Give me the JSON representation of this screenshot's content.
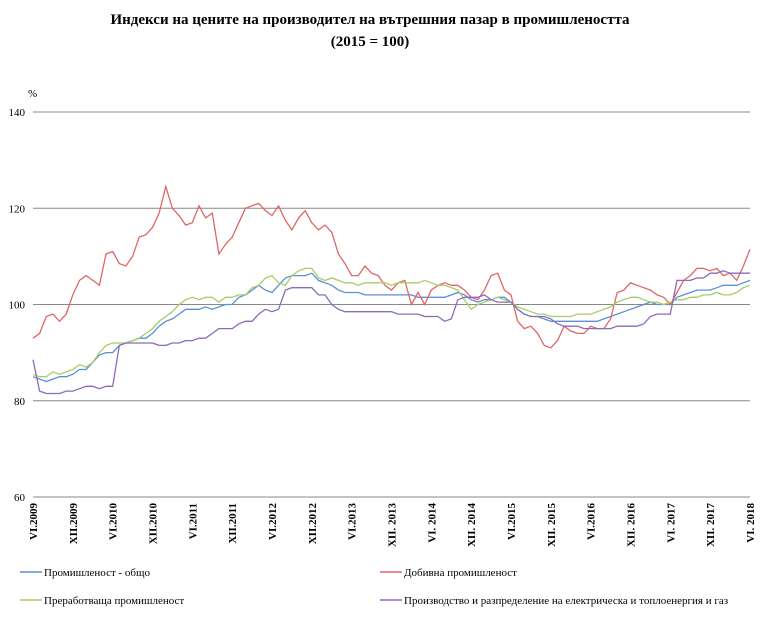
{
  "chart_data": {
    "type": "line",
    "title": "Индекси на цените на производител на вътрешния пазар в промишлеността",
    "subtitle": "(2015 = 100)",
    "y_label": "%",
    "categories": [
      "VI.2009",
      null,
      null,
      null,
      null,
      null,
      "XII.2009",
      null,
      null,
      null,
      null,
      null,
      "VI.2010",
      null,
      null,
      null,
      null,
      null,
      "XII.2010",
      null,
      null,
      null,
      null,
      null,
      "VI.2011",
      null,
      null,
      null,
      null,
      null,
      "XII.2011",
      null,
      null,
      null,
      null,
      null,
      "VI.2012",
      null,
      null,
      null,
      null,
      null,
      "XII.2012",
      null,
      null,
      null,
      null,
      null,
      "VI.2013",
      null,
      null,
      null,
      null,
      null,
      "XII. 2013",
      null,
      null,
      null,
      null,
      null,
      "VI. 2014",
      null,
      null,
      null,
      null,
      null,
      "XII. 2014",
      null,
      null,
      null,
      null,
      null,
      "VI.2015",
      null,
      null,
      null,
      null,
      null,
      "XII. 2015",
      null,
      null,
      null,
      null,
      null,
      "VI.2016",
      null,
      null,
      null,
      null,
      null,
      "XII. 2016",
      null,
      null,
      null,
      null,
      null,
      "VI. 2017",
      null,
      null,
      null,
      null,
      null,
      "XII. 2017",
      null,
      null,
      null,
      null,
      null,
      "VI. 2018"
    ],
    "ylim": [
      60,
      140
    ],
    "yticks": [
      60,
      80,
      100,
      120,
      140
    ],
    "grid": true,
    "series": [
      {
        "name": "Промишленост - общо",
        "color": "#5b8fd6",
        "values": [
          85,
          84.5,
          84,
          84.5,
          85,
          85,
          85.5,
          86.5,
          86.5,
          88,
          89.5,
          90,
          90,
          91.5,
          92,
          92.5,
          93,
          93,
          94,
          95.5,
          96.5,
          97,
          98,
          99,
          99,
          99,
          99.5,
          99,
          99.5,
          100,
          100,
          101.5,
          102,
          103,
          104,
          103,
          102.5,
          104,
          105.5,
          106,
          106,
          106,
          106.5,
          105,
          104.5,
          104,
          103,
          102.5,
          102.5,
          102.5,
          102,
          102,
          102,
          102,
          102,
          102,
          102,
          102,
          101.5,
          101.5,
          101.5,
          101.5,
          101.5,
          102,
          102.5,
          102,
          101,
          100.5,
          101,
          101,
          101.5,
          101.5,
          100.5,
          99,
          98,
          97.5,
          97.5,
          97,
          96.5,
          96.5,
          96.5,
          96.5,
          96.5,
          96.5,
          96.5,
          96.5,
          97,
          97.5,
          98,
          98.5,
          99,
          99.5,
          100,
          100.5,
          100,
          100,
          100,
          101.5,
          102,
          102.5,
          103,
          103,
          103,
          103.5,
          104,
          104,
          104,
          104.5,
          105
        ]
      },
      {
        "name": "Добивна промишленост",
        "color": "#e06666",
        "values": [
          93,
          94,
          97.5,
          98,
          96.5,
          98,
          102,
          105,
          106,
          105,
          104,
          110.5,
          111,
          108.5,
          108,
          110,
          114,
          114.5,
          116,
          119,
          124.5,
          120,
          118.5,
          116.5,
          117,
          120.5,
          118,
          119,
          110.5,
          112.5,
          114,
          117,
          120,
          120.5,
          121,
          119.5,
          118.5,
          120.5,
          117.5,
          115.5,
          118,
          119.5,
          117,
          115.5,
          116.5,
          115,
          110.5,
          108.5,
          106,
          106,
          108,
          106.5,
          106,
          104,
          103,
          104.5,
          105,
          100,
          102.5,
          100,
          103,
          104,
          104.5,
          104,
          104,
          103,
          101.5,
          101,
          103,
          106,
          106.5,
          103,
          102,
          96.5,
          95,
          95.5,
          94,
          91.5,
          91,
          92.5,
          95.5,
          94.5,
          94,
          94,
          95.5,
          95,
          95,
          97,
          102.5,
          103,
          104.5,
          104,
          103.5,
          103,
          102,
          101.5,
          100,
          102.5,
          105,
          106,
          107.5,
          107.5,
          107,
          107.5,
          106,
          106.5,
          105,
          108,
          111.5
        ]
      },
      {
        "name": "Преработваща промишленост",
        "color": "#a8cc6a",
        "values": [
          85.5,
          85,
          85,
          86,
          85.5,
          86,
          86.5,
          87.5,
          87,
          88,
          90,
          91.5,
          92,
          92,
          92,
          92.5,
          93,
          94,
          95,
          96.5,
          97.5,
          98.5,
          100,
          101,
          101.5,
          101,
          101.5,
          101.5,
          100.5,
          101.5,
          101.5,
          102,
          102,
          103.5,
          104,
          105.5,
          106,
          104.5,
          104,
          106,
          107,
          107.5,
          107.5,
          105.5,
          105,
          105.5,
          105,
          104.5,
          104.5,
          104,
          104.5,
          104.5,
          104.5,
          104.5,
          104,
          104.5,
          104.5,
          104.5,
          104.5,
          105,
          104.5,
          104,
          104,
          103.5,
          103,
          101,
          99,
          100,
          100.5,
          101,
          101.5,
          101,
          100.5,
          99.5,
          99,
          98.5,
          98,
          98,
          97.5,
          97.5,
          97.5,
          97.5,
          98,
          98,
          98,
          98.5,
          99,
          99.5,
          100.5,
          101,
          101.5,
          101.5,
          101,
          100.5,
          100.5,
          100,
          100.5,
          101,
          101,
          101.5,
          101.5,
          102,
          102,
          102.5,
          102,
          102,
          102.5,
          103.5,
          104
        ]
      },
      {
        "name": "Производство и разпределение на електрическа и топлоенергия и газ",
        "color": "#8b6bb8",
        "values": [
          88.5,
          82,
          81.5,
          81.5,
          81.5,
          82,
          82,
          82.5,
          83,
          83,
          82.5,
          83,
          83,
          91.5,
          92,
          92,
          92,
          92,
          92,
          91.5,
          91.5,
          92,
          92,
          92.5,
          92.5,
          93,
          93,
          94,
          95,
          95,
          95,
          96,
          96.5,
          96.5,
          98,
          99,
          98.5,
          99,
          103,
          103.5,
          103.5,
          103.5,
          103.5,
          102,
          102,
          100,
          99,
          98.5,
          98.5,
          98.5,
          98.5,
          98.5,
          98.5,
          98.5,
          98.5,
          98,
          98,
          98,
          98,
          97.5,
          97.5,
          97.5,
          96.5,
          97,
          101,
          101.5,
          101.5,
          101.5,
          102,
          101,
          100.5,
          100.5,
          100.5,
          99,
          98,
          97.5,
          97.5,
          97.5,
          97,
          96,
          95.5,
          95.5,
          95.5,
          95,
          95,
          95,
          95,
          95,
          95.5,
          95.5,
          95.5,
          95.5,
          96,
          97.5,
          98,
          98,
          98,
          105,
          105,
          105,
          105.5,
          105.5,
          106.5,
          106.5,
          107,
          106.5,
          106.5,
          106.5,
          106.5
        ]
      }
    ]
  }
}
